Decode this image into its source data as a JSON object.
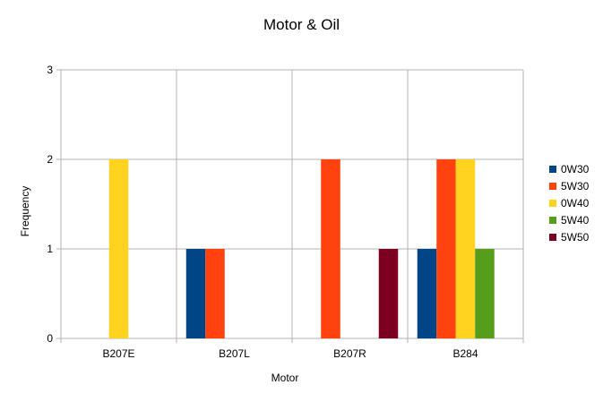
{
  "chart_data": {
    "type": "bar",
    "title": "Motor & Oil",
    "xlabel": "Motor",
    "ylabel": "Frequency",
    "categories": [
      "B207E",
      "B207L",
      "B207R",
      "B284"
    ],
    "ylim": [
      0,
      3
    ],
    "yticks": [
      "0",
      "1",
      "2",
      "3"
    ],
    "grid": true,
    "legend_position": "right",
    "series": [
      {
        "name": "0W30",
        "color": "#004586",
        "values": [
          0,
          1,
          0,
          1
        ]
      },
      {
        "name": "5W30",
        "color": "#ff420e",
        "values": [
          0,
          1,
          2,
          2
        ]
      },
      {
        "name": "0W40",
        "color": "#ffd320",
        "values": [
          2,
          0,
          0,
          2
        ]
      },
      {
        "name": "5W40",
        "color": "#579d1c",
        "values": [
          0,
          0,
          0,
          1
        ]
      },
      {
        "name": "5W50",
        "color": "#7e0021",
        "values": [
          0,
          0,
          1,
          0
        ]
      }
    ]
  }
}
